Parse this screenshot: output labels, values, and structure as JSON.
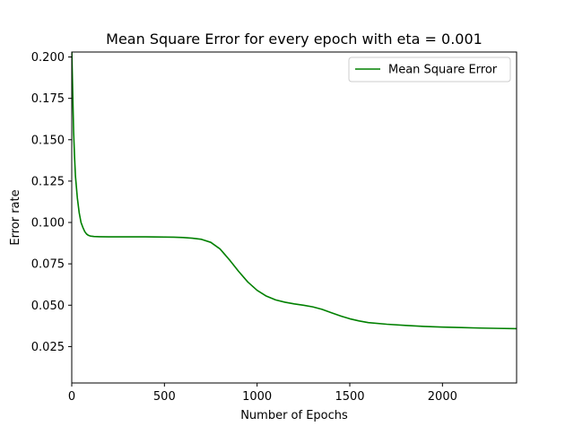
{
  "chart_data": {
    "type": "line",
    "title": "Mean Square Error for every epoch with eta = 0.001",
    "xlabel": "Number of Epochs",
    "ylabel": "Error rate",
    "xlim": [
      0,
      2400
    ],
    "ylim": [
      0.003,
      0.203
    ],
    "x_ticks": [
      0,
      500,
      1000,
      1500,
      2000
    ],
    "x_tick_labels": [
      "0",
      "500",
      "1000",
      "1500",
      "2000"
    ],
    "y_ticks": [
      0.025,
      0.05,
      0.075,
      0.1,
      0.125,
      0.15,
      0.175,
      0.2
    ],
    "y_tick_labels": [
      "0.025",
      "0.050",
      "0.075",
      "0.100",
      "0.125",
      "0.150",
      "0.175",
      "0.200"
    ],
    "grid": false,
    "legend_position": "top-right",
    "series": [
      {
        "name": "Mean Square Error",
        "color": "#008000",
        "x": [
          0,
          5,
          10,
          15,
          20,
          30,
          40,
          50,
          60,
          70,
          80,
          90,
          100,
          120,
          150,
          200,
          300,
          400,
          500,
          550,
          600,
          650,
          700,
          750,
          800,
          850,
          900,
          950,
          1000,
          1050,
          1100,
          1150,
          1200,
          1250,
          1300,
          1350,
          1400,
          1450,
          1500,
          1550,
          1600,
          1700,
          1800,
          1900,
          2000,
          2100,
          2200,
          2300,
          2400
        ],
        "y": [
          0.205,
          0.18,
          0.155,
          0.14,
          0.128,
          0.115,
          0.106,
          0.1,
          0.097,
          0.0945,
          0.093,
          0.0922,
          0.0918,
          0.0915,
          0.0914,
          0.0913,
          0.0913,
          0.0913,
          0.0912,
          0.0911,
          0.0909,
          0.0905,
          0.0898,
          0.088,
          0.084,
          0.0775,
          0.0705,
          0.064,
          0.059,
          0.0555,
          0.0532,
          0.0518,
          0.0508,
          0.05,
          0.049,
          0.0475,
          0.0455,
          0.0435,
          0.0418,
          0.0405,
          0.0395,
          0.0385,
          0.0378,
          0.0372,
          0.0368,
          0.0365,
          0.0362,
          0.036,
          0.0358
        ]
      }
    ]
  }
}
